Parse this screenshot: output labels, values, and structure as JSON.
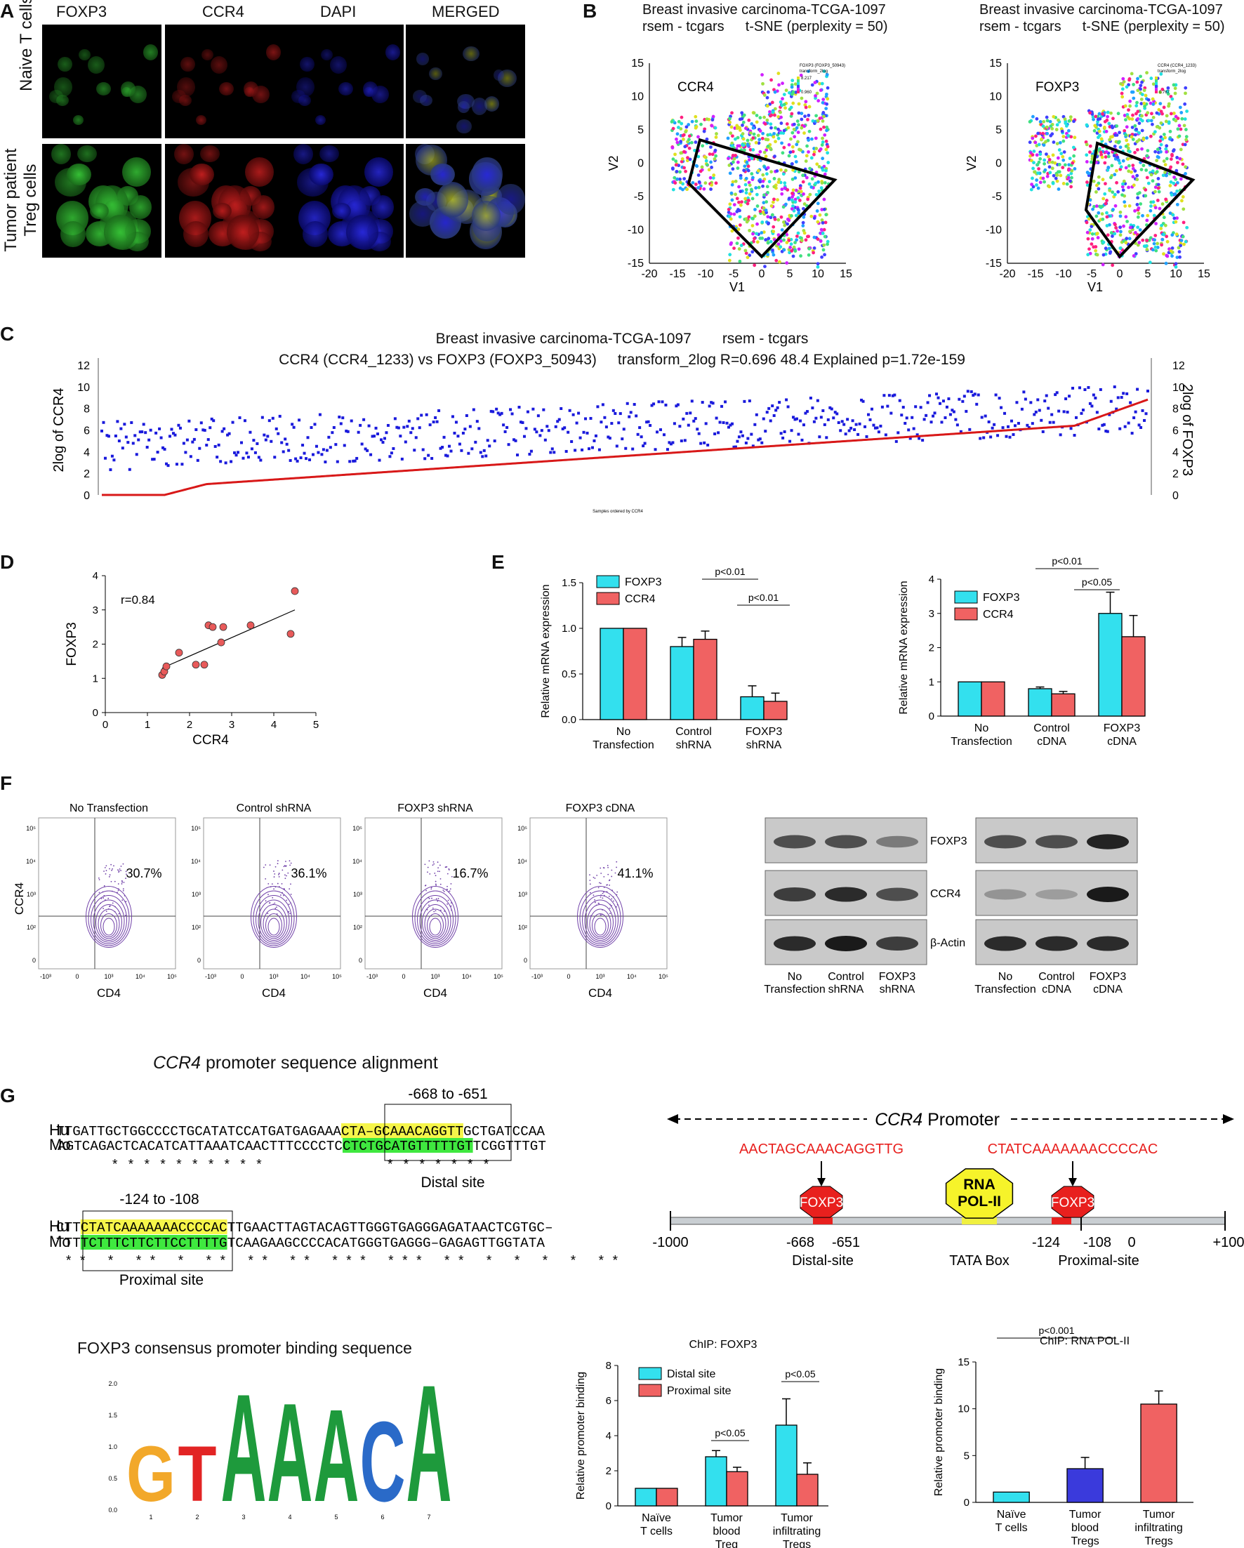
{
  "panels": {
    "A": "A",
    "B": "B",
    "C": "C",
    "D": "D",
    "E": "E",
    "F": "F",
    "G": "G"
  },
  "panelA": {
    "columns": [
      "FOXP3",
      "CCR4",
      "DAPI",
      "MERGED"
    ],
    "rows": [
      "Naive T cells",
      "Tumor patient\nTreg cells"
    ],
    "row1": "Naive T cells",
    "row2a": "Tumor patient",
    "row2b": "Treg cells"
  },
  "panelB": {
    "left": {
      "title1": "Breast invasive carcinoma-TCGA-1097",
      "title2a": "rsem - tcgars",
      "title2b": "t-SNE (perplexity = 50)",
      "label": "CCR4",
      "xlabel": "V1",
      "ylabel": "V2",
      "legend": "FOXP3 (FOXP3_50943)\ntransform_2log",
      "legend_max": "8.217",
      "legend_min": "0.960"
    },
    "right": {
      "title1": "Breast invasive carcinoma-TCGA-1097",
      "title2a": "rsem - tcgars",
      "title2b": "t-SNE (perplexity = 50)",
      "label": "FOXP3",
      "xlabel": "V1",
      "ylabel": "V2",
      "legend": "CCR4 (CCR4_1233)\ntransform_2log",
      "legend_max": "",
      "legend_min": "0.767"
    },
    "xticks": [
      "-20",
      "-15",
      "-10",
      "-5",
      "0",
      "5",
      "10",
      "15"
    ],
    "yticks": [
      "15",
      "10",
      "5",
      "0",
      "-5",
      "-10",
      "-15"
    ]
  },
  "panelC": {
    "title1a": "Breast invasive carcinoma-TCGA-1097",
    "title1b": "rsem - tcgars",
    "title2a": "CCR4 (CCR4_1233) vs FOXP3 (FOXP3_50943)",
    "title2b": "transform_2log R=0.696 48.4 Explained p=1.72e-159",
    "ylabel_left": "2log of CCR4",
    "ylabel_right": "2log of FOXP3",
    "xlabel": "Samples ordered by CCR4",
    "yticks": [
      "12",
      "10",
      "8",
      "6",
      "4",
      "2",
      "0"
    ]
  },
  "chart_data": [
    {
      "type": "scatter",
      "id": "D",
      "title": "",
      "xlabel": "CCR4",
      "ylabel": "FOXP3",
      "annotation": "r=0.84",
      "xlim": [
        0,
        5
      ],
      "ylim": [
        0,
        4
      ],
      "xticks": [
        "0",
        "1",
        "2",
        "3",
        "4",
        "5"
      ],
      "yticks": [
        "0",
        "1",
        "2",
        "3",
        "4"
      ],
      "x": [
        1.35,
        1.4,
        1.45,
        1.75,
        2.15,
        2.35,
        2.45,
        2.55,
        2.75,
        2.8,
        3.45,
        4.4,
        4.5
      ],
      "y": [
        1.1,
        1.2,
        1.35,
        1.75,
        1.4,
        1.4,
        2.55,
        2.5,
        2.05,
        2.5,
        2.55,
        2.3,
        3.55
      ]
    },
    {
      "type": "bar",
      "id": "E-left",
      "ylabel": "Relative mRNA expression",
      "ylim": [
        0,
        1.5
      ],
      "yticks": [
        "0.0",
        "0.5",
        "1.0",
        "1.5"
      ],
      "categories": [
        "No\nTransfection",
        "Control\nshRNA",
        "FOXP3\nshRNA"
      ],
      "series": [
        {
          "name": "FOXP3",
          "values": [
            1.0,
            0.8,
            0.25
          ],
          "err": [
            0,
            0.1,
            0.12
          ],
          "color": "#33e0ee"
        },
        {
          "name": "CCR4",
          "values": [
            1.0,
            0.88,
            0.2
          ],
          "err": [
            0,
            0.09,
            0.09
          ],
          "color": "#f06262"
        }
      ],
      "pvals": [
        "p<0.01",
        "p<0.01"
      ]
    },
    {
      "type": "bar",
      "id": "E-right",
      "ylabel": "Relative mRNA expression",
      "ylim": [
        0,
        4
      ],
      "yticks": [
        "0",
        "1",
        "2",
        "3",
        "4"
      ],
      "categories": [
        "No\nTransfection",
        "Control\ncDNA",
        "FOXP3\ncDNA"
      ],
      "series": [
        {
          "name": "FOXP3",
          "values": [
            1.0,
            0.8,
            3.0
          ],
          "err": [
            0,
            0.05,
            0.62
          ],
          "color": "#33e0ee"
        },
        {
          "name": "CCR4",
          "values": [
            1.0,
            0.65,
            2.32
          ],
          "err": [
            0,
            0.07,
            0.62
          ],
          "color": "#f06262"
        }
      ],
      "pvals": [
        "p<0.01",
        "p<0.05"
      ]
    },
    {
      "type": "bar",
      "id": "G-chip-foxp3",
      "title": "ChIP: FOXP3",
      "ylabel": "Relative promoter binding",
      "ylim": [
        0,
        8
      ],
      "yticks": [
        "0",
        "2",
        "4",
        "6",
        "8"
      ],
      "categories": [
        "Naïve\nT cells",
        "Tumor\nblood\nTreg",
        "Tumor\ninfiltrating\nTregs"
      ],
      "series": [
        {
          "name": "Distal site",
          "values": [
            1.0,
            2.8,
            4.6
          ],
          "err": [
            0,
            0.35,
            1.5
          ],
          "color": "#33e0ee"
        },
        {
          "name": "Proximal site",
          "values": [
            1.0,
            1.95,
            1.8
          ],
          "err": [
            0,
            0.25,
            0.65
          ],
          "color": "#f06262"
        }
      ],
      "pvals": [
        "p<0.05",
        "p<0.05"
      ]
    },
    {
      "type": "bar",
      "id": "G-chip-pol2",
      "title": "ChIP: RNA POL-II",
      "ylabel": "Relative promoter binding",
      "ylim": [
        0,
        15
      ],
      "yticks": [
        "0",
        "5",
        "10",
        "15"
      ],
      "categories": [
        "Naïve\nT cells",
        "Tumor\nblood\nTregs",
        "Tumor\ninfiltrating\nTregs"
      ],
      "values": [
        1.1,
        3.6,
        10.5
      ],
      "err": [
        0,
        1.2,
        1.4
      ],
      "colors": [
        "#33e0ee",
        "#3a3adc",
        "#f06262"
      ],
      "pvals": [
        "p<0.001"
      ]
    }
  ],
  "panelF": {
    "flow": [
      {
        "title": "No Transfection",
        "pct": "30.7%"
      },
      {
        "title": "Control shRNA",
        "pct": "36.1%"
      },
      {
        "title": "FOXP3 shRNA",
        "pct": "16.7%"
      },
      {
        "title": "FOXP3 cDNA",
        "pct": "41.1%"
      }
    ],
    "xlabel": "CD4",
    "ylabel": "CCR4",
    "yticks": [
      "10⁵",
      "10⁴",
      "10³",
      "10²",
      "0"
    ],
    "xticks": [
      "-10³",
      "0",
      "10³",
      "10⁴",
      "10⁵"
    ],
    "blot_labels": [
      "FOXP3",
      "CCR4",
      "β-Actin"
    ],
    "blot_left_lanes": [
      "No\nTransfection",
      "Control\nshRNA",
      "FOXP3\nshRNA"
    ],
    "blot_right_lanes": [
      "No\nTransfection",
      "Control\ncDNA",
      "FOXP3\ncDNA"
    ]
  },
  "panelG": {
    "align_title_italic": "CCR4",
    "align_title_rest": " promoter sequence alignment",
    "site1": "-668 to -651",
    "site2": "-124 to -108",
    "hu1a": "TTGATTGCTGGCCCCTGCATATCCATGATGAGAAA",
    "hu1b": "CTA–GCAAACAGGTT",
    "hu1c": "GCTGATCCAA",
    "mo1a": "AGTCAGACTCACATCATTAAATCAACTTTCCCCTC",
    "mo1b": "CTCTGCATGTTTTTGT",
    "mo1c": "TCGGTTTGT",
    "stars1": "* *   *   *   * * * *  *     *",
    "stars1b": "* *  * *        *    *   *",
    "distal": "Distal site",
    "hu2a": "CTT",
    "hu2b": "CTATCAAAAAAACCCCAC",
    "hu2c": "TTGAACTTAGTACAGTTGGGTGAGGGAGATAACTCGTGC–",
    "mo2a": "TTT",
    "mo2b": "TCTTTCTTCTTCCTTTTG",
    "mo2c": "TCAAGAAGCCCCACATGGGTGAGGG–GAGAGTTGGTATA",
    "stars2": "**    *     **    *  **          **   ** *** *** **  *  *   *   *  **",
    "proximal": "Proximal site",
    "hu": "Hu",
    "mo": "Mo",
    "promoter_italic": "CCR4",
    "promoter_rest": " Promoter",
    "seq_distal": "AACTAGCAAACAGGTTG",
    "seq_proximal": "CTATCAAAAAAACCCCAC",
    "foxp3": "FOXP3",
    "rna1": "RNA",
    "rna2": "POL-II",
    "axis": [
      "-1000",
      "-668",
      "-651",
      "-124",
      "-108",
      "0",
      "+100"
    ],
    "distal_site": "Distal-site",
    "tata": "TATA Box",
    "proximal_site": "Proximal-site",
    "logo_title": "FOXP3 consensus promoter binding sequence",
    "logo_yticks": [
      "2.0",
      "1.5",
      "1.0",
      "0.5",
      "0.0"
    ],
    "logo_xticks": [
      "1",
      "2",
      "3",
      "4",
      "5",
      "6",
      "7"
    ],
    "logo_letters": "GTAAACA"
  }
}
